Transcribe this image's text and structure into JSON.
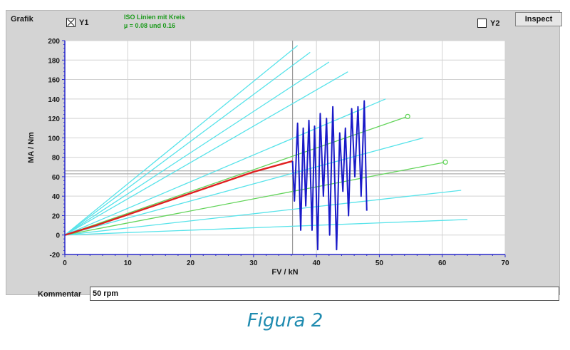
{
  "panel": {
    "title": "Grafik",
    "y1_label": "Y1",
    "y1_checked": true,
    "y2_label": "Y2",
    "y2_checked": false,
    "legend_line1": "ISO Linien mit Kreis",
    "legend_line2": "µ = 0.08 und 0.16",
    "inspect_label": "Inspect"
  },
  "kommentar": {
    "label": "Kommentar",
    "value": "50 rpm"
  },
  "caption": "Figura 2",
  "chart_data": {
    "type": "line",
    "xlabel": "FV / kN",
    "ylabel": "MA / Nm",
    "xlim": [
      0,
      70
    ],
    "ylim": [
      -20,
      200
    ],
    "x_ticks": [
      0,
      10,
      20,
      30,
      40,
      50,
      60,
      70
    ],
    "y_ticks": [
      -20,
      0,
      20,
      40,
      60,
      80,
      100,
      120,
      140,
      160,
      180,
      200
    ],
    "grid": true,
    "colors": {
      "iso": "#57e3ea",
      "friction": "#63d45a",
      "red": "#e02020",
      "blue": "#1a1ac8",
      "ref": "#9a9a9a"
    },
    "iso_lines": [
      {
        "end": [
          37,
          195
        ]
      },
      {
        "end": [
          39,
          188
        ]
      },
      {
        "end": [
          42,
          178
        ]
      },
      {
        "end": [
          45,
          168
        ]
      },
      {
        "end": [
          51,
          140
        ]
      },
      {
        "end": [
          57,
          100
        ]
      },
      {
        "end": [
          63,
          46
        ]
      },
      {
        "end": [
          64,
          16
        ]
      }
    ],
    "friction_lines": [
      {
        "end": [
          54.5,
          122
        ],
        "marker": true
      },
      {
        "end": [
          60.5,
          75
        ],
        "marker": true
      }
    ],
    "ref_lines": {
      "x": 36.2,
      "y": [
        63,
        66
      ]
    },
    "series": [
      {
        "x": [
          0,
          5,
          10,
          15,
          20,
          25,
          30,
          35,
          36.2
        ],
        "y": [
          0,
          10,
          21,
          32,
          43,
          54,
          65,
          74,
          76
        ]
      },
      {
        "x": [
          36.2,
          36.5,
          37,
          37.5,
          37.9,
          38.3,
          38.8,
          39.3,
          39.7,
          40.2,
          40.6,
          41.1,
          41.6,
          42.1,
          42.6,
          43.2,
          43.7,
          44.2,
          44.6,
          45.1,
          45.6,
          46.1,
          46.6,
          47.1,
          47.6,
          48
        ],
        "y": [
          76,
          35,
          115,
          5,
          110,
          30,
          118,
          5,
          112,
          -15,
          125,
          40,
          120,
          0,
          132,
          -15,
          105,
          45,
          110,
          20,
          130,
          60,
          132,
          40,
          138,
          25
        ]
      }
    ]
  }
}
